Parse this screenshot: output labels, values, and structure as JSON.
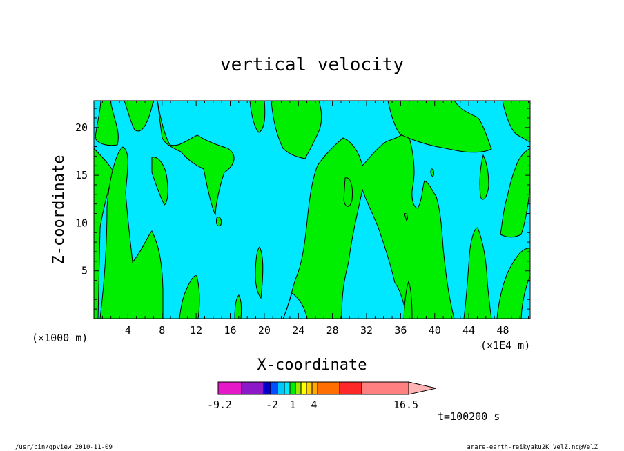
{
  "chart_data": {
    "type": "contour",
    "title": "vertical velocity",
    "xlabel": "X-coordinate",
    "ylabel": "Z-coordinate",
    "x_unit_label": "(×1000 m)",
    "x_scale_label": "(×1E4 m)",
    "x_ticks": [
      4,
      8,
      12,
      16,
      20,
      24,
      28,
      32,
      36,
      40,
      44,
      48
    ],
    "y_ticks": [
      5,
      10,
      15,
      20
    ],
    "xlim": [
      0,
      51.2
    ],
    "ylim": [
      0,
      22.8
    ],
    "fill_colors": {
      "negative": "#00e8ff",
      "positive": "#00ee00"
    },
    "colorbar": {
      "tick_labels": [
        "-9.2",
        "-2",
        "1",
        "4",
        "16.5"
      ],
      "colors": [
        "#e619c8",
        "#8c19c8",
        "#0000c8",
        "#0050ff",
        "#00c8ff",
        "#00e8ff",
        "#00ee00",
        "#a0e600",
        "#ffff00",
        "#ffd200",
        "#ffaa00",
        "#ff6e00",
        "#ff2828",
        "#ff8080",
        "#ffb4b4"
      ]
    },
    "time_label": "t=100200 s"
  },
  "footer": {
    "left": "/usr/bin/gpview  2010-11-09",
    "right": "arare-earth-reikyaku2K_VelZ.nc@VelZ"
  }
}
